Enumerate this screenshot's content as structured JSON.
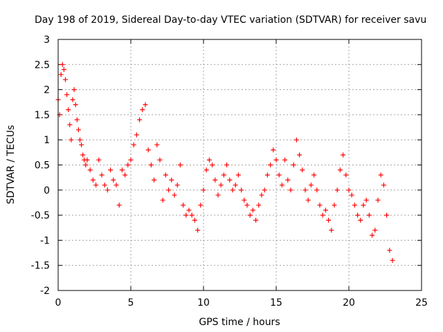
{
  "chart_data": {
    "type": "scatter",
    "title": "Day 198 of 2019, Sidereal Day-to-day VTEC variation (SDTVAR) for receiver savu",
    "xlabel": "GPS time / hours",
    "ylabel": "SDTVAR / TECUs",
    "xlim": [
      0,
      25
    ],
    "ylim": [
      -2,
      3
    ],
    "grid": true,
    "marker": "+",
    "x_ticks": [
      0,
      5,
      10,
      15,
      20,
      25
    ],
    "x_tick_labels": [
      "0",
      "5",
      "10",
      "15",
      "20",
      "25"
    ],
    "y_ticks": [
      -2,
      -1.5,
      -1,
      -0.5,
      0,
      0.5,
      1,
      1.5,
      2,
      2.5,
      3
    ],
    "y_tick_labels": [
      "-2",
      "-1.5",
      "-1",
      "-0.5",
      "0",
      "0.5",
      "1",
      "1.5",
      "2",
      "2.5",
      "3"
    ],
    "series": [
      {
        "name": "SDTVAR",
        "color": "#ff0000",
        "x": [
          0.0,
          0.1,
          0.2,
          0.3,
          0.4,
          0.5,
          0.6,
          0.7,
          0.8,
          0.9,
          1.0,
          1.1,
          1.2,
          1.3,
          1.4,
          1.5,
          1.6,
          1.7,
          1.8,
          1.9,
          2.0,
          2.2,
          2.4,
          2.6,
          2.8,
          3.0,
          3.2,
          3.4,
          3.6,
          3.8,
          4.0,
          4.2,
          4.4,
          4.6,
          4.8,
          5.0,
          5.2,
          5.4,
          5.6,
          5.8,
          6.0,
          6.2,
          6.4,
          6.6,
          6.8,
          7.0,
          7.2,
          7.4,
          7.6,
          7.8,
          8.0,
          8.2,
          8.4,
          8.6,
          8.8,
          9.0,
          9.2,
          9.4,
          9.6,
          9.8,
          10.0,
          10.2,
          10.4,
          10.6,
          10.8,
          11.0,
          11.2,
          11.4,
          11.6,
          11.8,
          12.0,
          12.2,
          12.4,
          12.6,
          12.8,
          13.0,
          13.2,
          13.4,
          13.6,
          13.8,
          14.0,
          14.2,
          14.4,
          14.6,
          14.8,
          15.0,
          15.2,
          15.4,
          15.6,
          15.8,
          16.0,
          16.2,
          16.4,
          16.6,
          16.8,
          17.0,
          17.2,
          17.4,
          17.6,
          17.8,
          18.0,
          18.2,
          18.4,
          18.6,
          18.8,
          19.0,
          19.2,
          19.4,
          19.6,
          19.8,
          20.0,
          20.2,
          20.4,
          20.6,
          20.8,
          21.0,
          21.2,
          21.4,
          21.6,
          21.8,
          22.0,
          22.2,
          22.4,
          22.6,
          22.8,
          23.0
        ],
        "y": [
          1.8,
          1.5,
          2.3,
          2.5,
          2.4,
          2.2,
          1.9,
          1.6,
          1.3,
          1.0,
          1.8,
          2.0,
          1.7,
          1.4,
          1.2,
          1.0,
          0.9,
          0.7,
          0.6,
          0.5,
          0.6,
          0.4,
          0.2,
          0.1,
          0.6,
          0.3,
          0.1,
          0.0,
          0.4,
          0.2,
          0.1,
          -0.3,
          0.4,
          0.3,
          0.5,
          0.6,
          0.9,
          1.1,
          1.4,
          1.6,
          1.7,
          0.8,
          0.5,
          0.2,
          0.9,
          0.6,
          -0.2,
          0.3,
          0.0,
          0.2,
          -0.1,
          0.1,
          0.5,
          -0.3,
          -0.5,
          -0.4,
          -0.5,
          -0.6,
          -0.8,
          -0.3,
          0.0,
          0.4,
          0.6,
          0.5,
          0.2,
          -0.1,
          0.1,
          0.3,
          0.5,
          0.2,
          0.0,
          0.1,
          0.3,
          0.0,
          -0.2,
          -0.3,
          -0.5,
          -0.4,
          -0.6,
          -0.3,
          -0.1,
          0.0,
          0.3,
          0.5,
          0.8,
          0.6,
          0.3,
          0.1,
          0.6,
          0.2,
          0.0,
          0.5,
          1.0,
          0.7,
          0.4,
          0.0,
          -0.2,
          0.1,
          0.3,
          0.0,
          -0.3,
          -0.5,
          -0.4,
          -0.6,
          -0.8,
          -0.3,
          0.0,
          0.4,
          0.7,
          0.3,
          0.0,
          -0.1,
          -0.3,
          -0.5,
          -0.6,
          -0.3,
          -0.2,
          -0.5,
          -0.9,
          -0.8,
          -0.2,
          0.3,
          0.1,
          -0.5,
          -1.2,
          -1.4
        ]
      }
    ]
  }
}
